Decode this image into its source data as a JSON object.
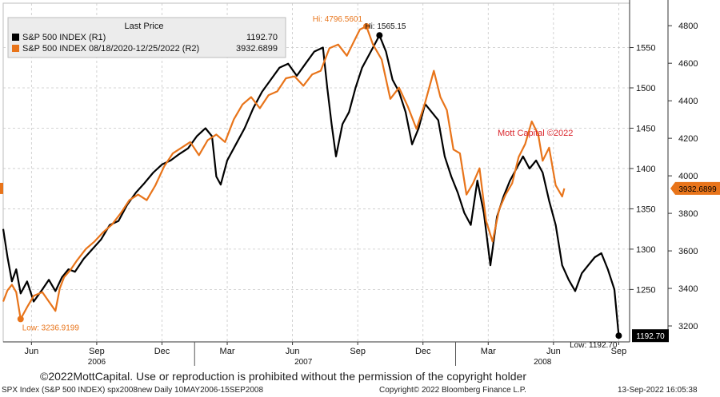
{
  "chart_data": {
    "type": "line",
    "legend": {
      "title": "Last Price",
      "items": [
        {
          "name": "S&P 500 INDEX  (R1)",
          "value": "1192.70",
          "color": "#000000"
        },
        {
          "name": "S&P 500 INDEX 08/18/2020-12/25/2022   (R2)",
          "value": "3932.6899",
          "color": "#e8741a"
        }
      ]
    },
    "x_labels": [
      {
        "label": "Jun",
        "x": 0.5
      },
      {
        "label": "Sep",
        "x": 3.5
      },
      {
        "label": "Dec",
        "x": 6.5
      },
      {
        "label": "Mar",
        "x": 9.5
      },
      {
        "label": "Jun",
        "x": 12.5
      },
      {
        "label": "Sep",
        "x": 15.5
      },
      {
        "label": "Dec",
        "x": 18.5
      },
      {
        "label": "Mar",
        "x": 21.5
      },
      {
        "label": "Jun",
        "x": 24.5
      },
      {
        "label": "Sep",
        "x": 27.5
      }
    ],
    "year_labels": [
      {
        "label": "2006",
        "x": 3.5
      },
      {
        "label": "2007",
        "x": 13.0
      },
      {
        "label": "2008",
        "x": 24.0
      }
    ],
    "x_range": [
      -0.8,
      28.0
    ],
    "axis_r1": {
      "min": 1185,
      "max": 1605,
      "ticks": [
        1250,
        1300,
        1350,
        1400,
        1450,
        1500,
        1550
      ]
    },
    "axis_r2": {
      "min": 3115,
      "max": 4920,
      "ticks": [
        3200,
        3400,
        3600,
        3800,
        4000,
        4200,
        4400,
        4600,
        4800
      ]
    },
    "series": [
      {
        "name": "S&P 500 INDEX  (R1)",
        "color": "#000000",
        "axis": "r1",
        "points": [
          [
            -0.8,
            1325
          ],
          [
            -0.6,
            1290
          ],
          [
            -0.4,
            1260
          ],
          [
            -0.2,
            1275
          ],
          [
            0.0,
            1245
          ],
          [
            0.3,
            1260
          ],
          [
            0.6,
            1235
          ],
          [
            1.0,
            1250
          ],
          [
            1.3,
            1262
          ],
          [
            1.6,
            1248
          ],
          [
            1.9,
            1265
          ],
          [
            2.2,
            1275
          ],
          [
            2.5,
            1272
          ],
          [
            2.9,
            1288
          ],
          [
            3.3,
            1300
          ],
          [
            3.7,
            1312
          ],
          [
            4.1,
            1330
          ],
          [
            4.5,
            1335
          ],
          [
            4.9,
            1355
          ],
          [
            5.3,
            1370
          ],
          [
            5.7,
            1382
          ],
          [
            6.1,
            1395
          ],
          [
            6.5,
            1405
          ],
          [
            6.9,
            1410
          ],
          [
            7.3,
            1418
          ],
          [
            7.7,
            1425
          ],
          [
            8.1,
            1440
          ],
          [
            8.5,
            1450
          ],
          [
            8.8,
            1440
          ],
          [
            9.0,
            1390
          ],
          [
            9.2,
            1380
          ],
          [
            9.5,
            1410
          ],
          [
            9.9,
            1430
          ],
          [
            10.3,
            1450
          ],
          [
            10.7,
            1475
          ],
          [
            11.1,
            1495
          ],
          [
            11.5,
            1510
          ],
          [
            11.9,
            1525
          ],
          [
            12.3,
            1530
          ],
          [
            12.7,
            1515
          ],
          [
            13.1,
            1530
          ],
          [
            13.5,
            1545
          ],
          [
            13.9,
            1550
          ],
          [
            14.1,
            1500
          ],
          [
            14.3,
            1455
          ],
          [
            14.5,
            1415
          ],
          [
            14.8,
            1455
          ],
          [
            15.1,
            1470
          ],
          [
            15.4,
            1500
          ],
          [
            15.7,
            1525
          ],
          [
            16.0,
            1540
          ],
          [
            16.3,
            1555
          ],
          [
            16.5,
            1565.15
          ],
          [
            16.8,
            1545
          ],
          [
            17.1,
            1510
          ],
          [
            17.4,
            1495
          ],
          [
            17.7,
            1470
          ],
          [
            18.0,
            1430
          ],
          [
            18.3,
            1450
          ],
          [
            18.6,
            1480
          ],
          [
            18.9,
            1470
          ],
          [
            19.2,
            1460
          ],
          [
            19.5,
            1415
          ],
          [
            19.8,
            1390
          ],
          [
            20.1,
            1370
          ],
          [
            20.4,
            1345
          ],
          [
            20.7,
            1330
          ],
          [
            21.0,
            1385
          ],
          [
            21.3,
            1345
          ],
          [
            21.6,
            1280
          ],
          [
            21.9,
            1340
          ],
          [
            22.2,
            1365
          ],
          [
            22.5,
            1385
          ],
          [
            22.8,
            1400
          ],
          [
            23.1,
            1415
          ],
          [
            23.4,
            1400
          ],
          [
            23.7,
            1410
          ],
          [
            24.0,
            1395
          ],
          [
            24.3,
            1360
          ],
          [
            24.6,
            1330
          ],
          [
            24.9,
            1280
          ],
          [
            25.2,
            1262
          ],
          [
            25.5,
            1248
          ],
          [
            25.8,
            1270
          ],
          [
            26.1,
            1280
          ],
          [
            26.4,
            1290
          ],
          [
            26.7,
            1295
          ],
          [
            27.0,
            1275
          ],
          [
            27.3,
            1250
          ],
          [
            27.5,
            1192.7
          ]
        ]
      },
      {
        "name": "S&P 500 INDEX 08/18/2020-12/25/2022   (R2)",
        "color": "#e8741a",
        "axis": "r2",
        "points": [
          [
            -0.8,
            3330
          ],
          [
            -0.6,
            3390
          ],
          [
            -0.4,
            3420
          ],
          [
            -0.2,
            3380
          ],
          [
            0.0,
            3236.9
          ],
          [
            0.3,
            3300
          ],
          [
            0.6,
            3360
          ],
          [
            1.0,
            3380
          ],
          [
            1.3,
            3330
          ],
          [
            1.6,
            3280
          ],
          [
            1.8,
            3400
          ],
          [
            2.0,
            3460
          ],
          [
            2.3,
            3500
          ],
          [
            2.6,
            3550
          ],
          [
            3.0,
            3610
          ],
          [
            3.4,
            3650
          ],
          [
            3.8,
            3700
          ],
          [
            4.2,
            3740
          ],
          [
            4.6,
            3800
          ],
          [
            5.0,
            3870
          ],
          [
            5.4,
            3900
          ],
          [
            5.8,
            3870
          ],
          [
            6.2,
            3950
          ],
          [
            6.6,
            4050
          ],
          [
            7.0,
            4120
          ],
          [
            7.4,
            4150
          ],
          [
            7.8,
            4180
          ],
          [
            8.2,
            4110
          ],
          [
            8.6,
            4190
          ],
          [
            9.0,
            4220
          ],
          [
            9.4,
            4180
          ],
          [
            9.8,
            4300
          ],
          [
            10.2,
            4380
          ],
          [
            10.6,
            4420
          ],
          [
            11.0,
            4360
          ],
          [
            11.4,
            4430
          ],
          [
            11.8,
            4450
          ],
          [
            12.2,
            4520
          ],
          [
            12.6,
            4530
          ],
          [
            13.0,
            4480
          ],
          [
            13.4,
            4540
          ],
          [
            13.8,
            4560
          ],
          [
            14.2,
            4680
          ],
          [
            14.6,
            4700
          ],
          [
            15.0,
            4640
          ],
          [
            15.3,
            4710
          ],
          [
            15.6,
            4780
          ],
          [
            15.9,
            4796.56
          ],
          [
            16.2,
            4700
          ],
          [
            16.6,
            4620
          ],
          [
            17.0,
            4410
          ],
          [
            17.4,
            4470
          ],
          [
            17.8,
            4370
          ],
          [
            18.2,
            4250
          ],
          [
            18.6,
            4390
          ],
          [
            19.0,
            4560
          ],
          [
            19.3,
            4420
          ],
          [
            19.6,
            4350
          ],
          [
            19.9,
            4140
          ],
          [
            20.2,
            4120
          ],
          [
            20.5,
            3900
          ],
          [
            20.8,
            3960
          ],
          [
            21.1,
            4040
          ],
          [
            21.4,
            3760
          ],
          [
            21.7,
            3650
          ],
          [
            22.0,
            3820
          ],
          [
            22.3,
            3900
          ],
          [
            22.6,
            3960
          ],
          [
            22.9,
            4100
          ],
          [
            23.2,
            4170
          ],
          [
            23.5,
            4290
          ],
          [
            23.8,
            4220
          ],
          [
            24.0,
            4080
          ],
          [
            24.3,
            4150
          ],
          [
            24.6,
            3950
          ],
          [
            24.9,
            3890
          ],
          [
            25.0,
            3932.69
          ]
        ]
      }
    ],
    "annotations": {
      "hi_r2": "Hi: 4796.5601",
      "hi_r1": "Hi: 1565.15",
      "low_r2": "Low: 3236.9199",
      "low_r1": "Low: 1192.70",
      "watermark": "Mott Capital ©2022",
      "last_r1": "1192.70",
      "last_r2": "3932.6899"
    }
  },
  "copyright_text": "©2022MottCapital. Use or reproduction is prohibited without the permission of the copyright holder",
  "footer": {
    "left": "SPX Index (S&P 500 INDEX)  spx2008new  Daily 10MAY2006-15SEP2008",
    "center": "Copyright© 2022 Bloomberg Finance L.P.",
    "right": "13-Sep-2022 16:05:38"
  },
  "colors": {
    "series1": "#000000",
    "series2": "#e8741a",
    "watermark": "#d9262d",
    "grid": "#c8c8c8"
  }
}
